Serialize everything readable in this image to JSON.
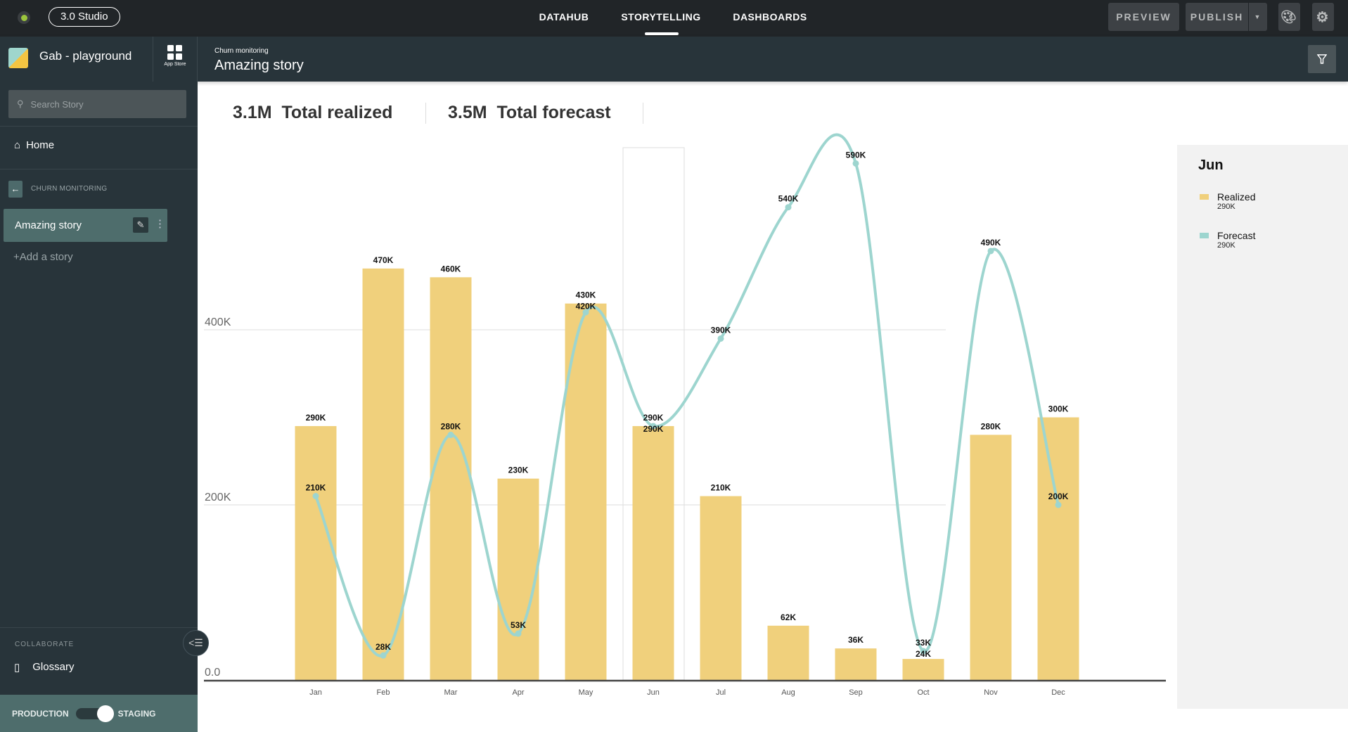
{
  "topbar": {
    "studio_label": "3.0 Studio",
    "nav": [
      "DATAHUB",
      "STORYTELLING",
      "DASHBOARDS"
    ],
    "active_nav": "STORYTELLING",
    "preview": "PREVIEW",
    "publish": "PUBLISH"
  },
  "header": {
    "workspace": "Gab - playground",
    "app_store": "App Store",
    "breadcrumb": "Churn monitoring",
    "title": "Amazing story"
  },
  "sidebar": {
    "search_placeholder": "Search Story",
    "home": "Home",
    "section": "CHURN MONITORING",
    "story": "Amazing story",
    "add_story": "Add a story",
    "collaborate": "COLLABORATE",
    "glossary": "Glossary",
    "env_left": "PRODUCTION",
    "env_right": "STAGING"
  },
  "kpis": [
    {
      "value": "3.1M",
      "label": "Total realized"
    },
    {
      "value": "3.5M",
      "label": "Total forecast"
    }
  ],
  "legend": {
    "title": "Jun",
    "items": [
      {
        "name": "Realized",
        "value": "290K",
        "color": "#f0d07c"
      },
      {
        "name": "Forecast",
        "value": "290K",
        "color": "#9dd5cf"
      }
    ]
  },
  "chart_data": {
    "type": "bar+line",
    "categories": [
      "Jan",
      "Feb",
      "Mar",
      "Apr",
      "May",
      "Jun",
      "Jul",
      "Aug",
      "Sep",
      "Oct",
      "Nov",
      "Dec"
    ],
    "series": [
      {
        "name": "Realized",
        "type": "bar",
        "color": "#f0d07c",
        "values": [
          290000,
          470000,
          460000,
          230000,
          430000,
          290000,
          210000,
          62000,
          36000,
          24000,
          280000,
          300000
        ],
        "labels": [
          "290K",
          "470K",
          "460K",
          "230K",
          "430K",
          "290K",
          "210K",
          "62K",
          "36K",
          "24K",
          "280K",
          "300K"
        ]
      },
      {
        "name": "Forecast",
        "type": "line",
        "color": "#9dd5cf",
        "values": [
          210000,
          28000,
          280000,
          53000,
          420000,
          290000,
          390000,
          540000,
          590000,
          33000,
          490000,
          200000
        ],
        "labels": [
          "210K",
          "28K",
          "280K",
          "53K",
          "420K",
          "290K",
          "390K",
          "540K",
          "590K",
          "33K",
          "490K",
          "200K"
        ]
      }
    ],
    "yticks": [
      "0.0",
      "200K",
      "400K"
    ],
    "ytick_values": [
      0,
      200000,
      400000
    ],
    "highlighted": "Jun",
    "grid": true
  }
}
